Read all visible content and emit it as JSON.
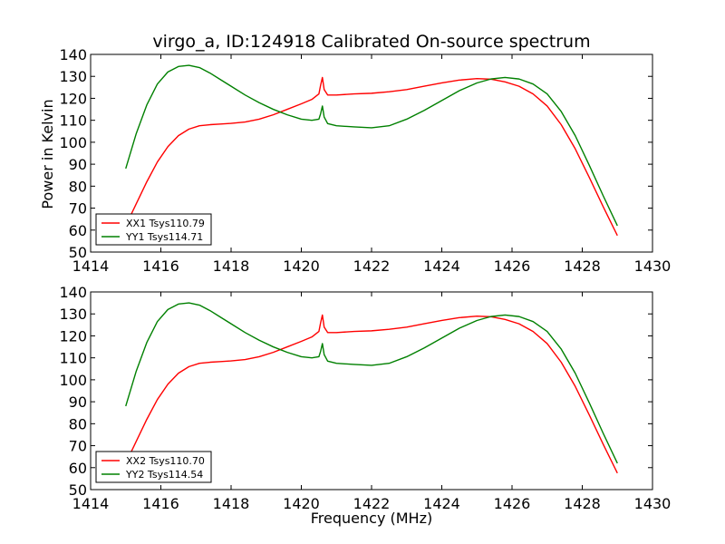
{
  "figure": {
    "title": "virgo_a, ID:124918 Calibrated On-source spectrum",
    "xlabel": "Frequency (MHz)",
    "ylabel": "Power in Kelvin"
  },
  "colors": {
    "xx": "#ff0000",
    "yy": "#008000",
    "axes": "#000000",
    "background": "#ffffff"
  },
  "chart_data": [
    {
      "type": "line",
      "ylabel": "Power in Kelvin",
      "xlabel": "",
      "xlim": [
        1414,
        1430
      ],
      "ylim": [
        50,
        140
      ],
      "xticks": [
        1414,
        1416,
        1418,
        1420,
        1422,
        1424,
        1426,
        1428,
        1430
      ],
      "yticks": [
        50,
        60,
        70,
        80,
        90,
        100,
        110,
        120,
        130,
        140
      ],
      "grid": false,
      "legend_position": "lower-left",
      "series": [
        {
          "name": "XX1 Tsys110.79",
          "color": "#ff0000",
          "x": [
            1415.0,
            1415.3,
            1415.6,
            1415.9,
            1416.2,
            1416.5,
            1416.8,
            1417.1,
            1417.4,
            1417.7,
            1418.0,
            1418.4,
            1418.8,
            1419.2,
            1419.6,
            1420.0,
            1420.3,
            1420.5,
            1420.55,
            1420.6,
            1420.65,
            1420.75,
            1421.0,
            1421.5,
            1422.0,
            1422.5,
            1423.0,
            1423.5,
            1424.0,
            1424.5,
            1425.0,
            1425.4,
            1425.8,
            1426.2,
            1426.6,
            1427.0,
            1427.4,
            1427.8,
            1428.2,
            1428.6,
            1429.0
          ],
          "values": [
            62,
            72,
            82,
            91,
            98,
            103,
            106,
            107.5,
            108,
            108.3,
            108.6,
            109.2,
            110.5,
            112.5,
            115,
            117.5,
            119.5,
            122,
            126,
            129.5,
            124,
            121.5,
            121.5,
            122,
            122.3,
            123,
            124,
            125.5,
            127,
            128.3,
            129,
            128.7,
            127.5,
            125.5,
            122,
            116.5,
            108,
            97,
            84,
            70.5,
            57.5
          ]
        },
        {
          "name": "YY1 Tsys114.71",
          "color": "#008000",
          "x": [
            1415.0,
            1415.3,
            1415.6,
            1415.9,
            1416.2,
            1416.5,
            1416.8,
            1417.1,
            1417.4,
            1417.7,
            1418.0,
            1418.4,
            1418.8,
            1419.2,
            1419.6,
            1420.0,
            1420.3,
            1420.5,
            1420.55,
            1420.6,
            1420.65,
            1420.75,
            1421.0,
            1421.5,
            1422.0,
            1422.5,
            1423.0,
            1423.5,
            1424.0,
            1424.5,
            1425.0,
            1425.4,
            1425.8,
            1426.2,
            1426.6,
            1427.0,
            1427.4,
            1427.8,
            1428.2,
            1428.6,
            1429.0
          ],
          "values": [
            88,
            104,
            117,
            126.5,
            132,
            134.5,
            135,
            134,
            131.5,
            128.5,
            125.5,
            121.5,
            118,
            115,
            112.5,
            110.5,
            110,
            110.5,
            113,
            116.5,
            111.5,
            108.5,
            107.5,
            107,
            106.6,
            107.5,
            110.5,
            114.5,
            119,
            123.5,
            127,
            128.8,
            129.5,
            128.8,
            126.5,
            122,
            114,
            103,
            89.5,
            75.5,
            62
          ]
        }
      ]
    },
    {
      "type": "line",
      "ylabel": "",
      "xlabel": "Frequency (MHz)",
      "xlim": [
        1414,
        1430
      ],
      "ylim": [
        50,
        140
      ],
      "xticks": [
        1414,
        1416,
        1418,
        1420,
        1422,
        1424,
        1426,
        1428,
        1430
      ],
      "yticks": [
        50,
        60,
        70,
        80,
        90,
        100,
        110,
        120,
        130,
        140
      ],
      "grid": false,
      "legend_position": "lower-left",
      "series": [
        {
          "name": "XX2 Tsys110.70",
          "color": "#ff0000",
          "x": [
            1415.0,
            1415.3,
            1415.6,
            1415.9,
            1416.2,
            1416.5,
            1416.8,
            1417.1,
            1417.4,
            1417.7,
            1418.0,
            1418.4,
            1418.8,
            1419.2,
            1419.6,
            1420.0,
            1420.3,
            1420.5,
            1420.55,
            1420.6,
            1420.65,
            1420.75,
            1421.0,
            1421.5,
            1422.0,
            1422.5,
            1423.0,
            1423.5,
            1424.0,
            1424.5,
            1425.0,
            1425.4,
            1425.8,
            1426.2,
            1426.6,
            1427.0,
            1427.4,
            1427.8,
            1428.2,
            1428.6,
            1429.0
          ],
          "values": [
            62,
            72,
            82,
            91,
            98,
            103,
            106,
            107.5,
            108,
            108.3,
            108.6,
            109.2,
            110.5,
            112.5,
            115,
            117.5,
            119.5,
            122,
            126,
            129.5,
            124,
            121.5,
            121.5,
            122,
            122.3,
            123,
            124,
            125.5,
            127,
            128.3,
            129,
            128.7,
            127.5,
            125.5,
            122,
            116.5,
            108,
            97,
            84,
            70.5,
            57.5
          ]
        },
        {
          "name": "YY2 Tsys114.54",
          "color": "#008000",
          "x": [
            1415.0,
            1415.3,
            1415.6,
            1415.9,
            1416.2,
            1416.5,
            1416.8,
            1417.1,
            1417.4,
            1417.7,
            1418.0,
            1418.4,
            1418.8,
            1419.2,
            1419.6,
            1420.0,
            1420.3,
            1420.5,
            1420.55,
            1420.6,
            1420.65,
            1420.75,
            1421.0,
            1421.5,
            1422.0,
            1422.5,
            1423.0,
            1423.5,
            1424.0,
            1424.5,
            1425.0,
            1425.4,
            1425.8,
            1426.2,
            1426.6,
            1427.0,
            1427.4,
            1427.8,
            1428.2,
            1428.6,
            1429.0
          ],
          "values": [
            88,
            104,
            117,
            126.5,
            132,
            134.5,
            135,
            134,
            131.5,
            128.5,
            125.5,
            121.5,
            118,
            115,
            112.5,
            110.5,
            110,
            110.5,
            113,
            116.5,
            111.5,
            108.5,
            107.5,
            107,
            106.6,
            107.5,
            110.5,
            114.5,
            119,
            123.5,
            127,
            128.8,
            129.5,
            128.8,
            126.5,
            122,
            114,
            103,
            89.5,
            75.5,
            62
          ]
        }
      ]
    }
  ]
}
